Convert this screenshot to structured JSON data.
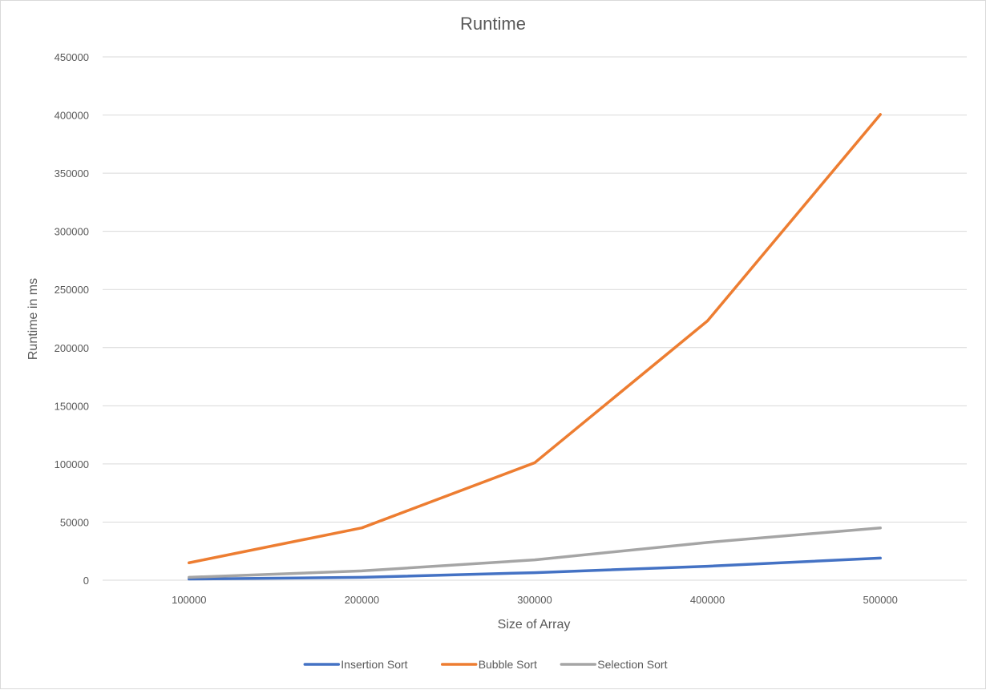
{
  "chart_data": {
    "type": "line",
    "title": "Runtime",
    "xlabel": "Size of Array",
    "ylabel": "Runtime in ms",
    "categories": [
      "100000",
      "200000",
      "300000",
      "400000",
      "500000"
    ],
    "y_ticks": [
      0,
      50000,
      100000,
      150000,
      200000,
      250000,
      300000,
      350000,
      400000,
      450000
    ],
    "ylim": [
      0,
      450000
    ],
    "grid": true,
    "legend_position": "bottom",
    "series": [
      {
        "name": "Insertion Sort",
        "color": "#4472c4",
        "values": [
          1000,
          2500,
          6500,
          12000,
          19000
        ]
      },
      {
        "name": "Bubble Sort",
        "color": "#ed7d31",
        "values": [
          15000,
          45000,
          101000,
          223000,
          400500
        ]
      },
      {
        "name": "Selection Sort",
        "color": "#a5a5a5",
        "values": [
          2500,
          8000,
          17500,
          32500,
          45000
        ]
      }
    ]
  }
}
